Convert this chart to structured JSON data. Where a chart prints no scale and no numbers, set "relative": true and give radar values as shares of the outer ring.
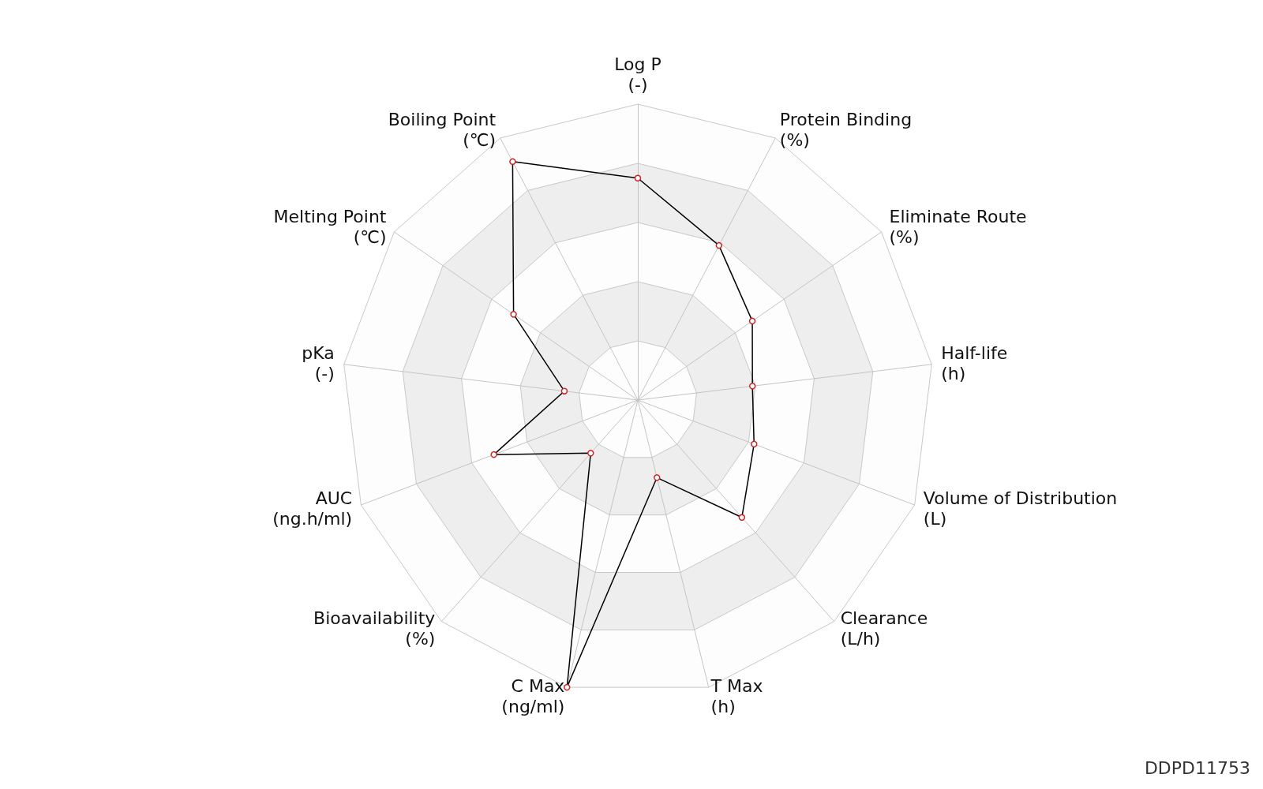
{
  "chart_data": {
    "type": "radar",
    "relative": true,
    "categories": [
      "Log P\n(-)",
      "Protein Binding\n(%)",
      "Eliminate Route\n(%)",
      "Half-life\n(h)",
      "Volume of Distribution\n(L)",
      "Clearance\n(L/h)",
      "T Max\n(h)",
      "C Max\n(ng/ml)",
      "Bioavailability\n(%)",
      "AUC\n(ng.h/ml)",
      "pKa\n(-)",
      "Melting Point\n(℃)",
      "Boiling Point\n(℃)"
    ],
    "series": [
      {
        "color": "#000000",
        "values": [
          0.75,
          0.59,
          0.47,
          0.39,
          0.42,
          0.53,
          0.27,
          1.0,
          0.24,
          0.52,
          0.25,
          0.51,
          0.91
        ]
      }
    ],
    "marker": "circle",
    "annotations": [
      "DDPD11753"
    ]
  }
}
